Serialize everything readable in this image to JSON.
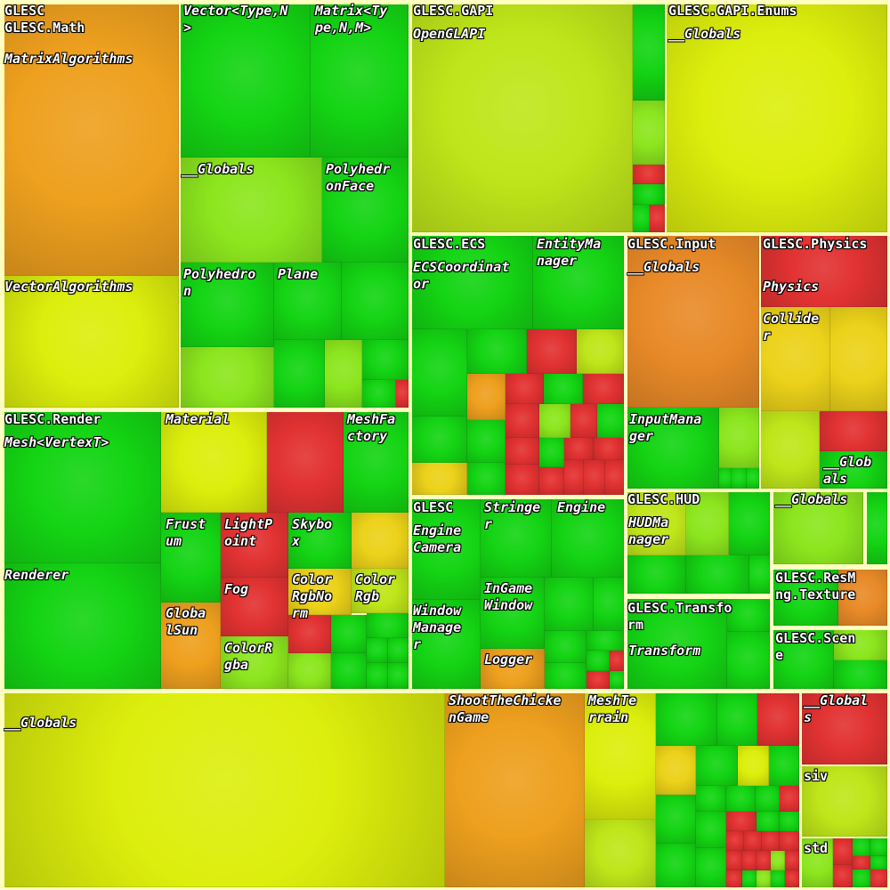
{
  "palette": {
    "green": "#14d414",
    "lgreen": "#8ce61e",
    "ygreen": "#bfe61a",
    "yellow": "#dcee0c",
    "yelloworange": "#ecd21a",
    "orange": "#eea01e",
    "orangered": "#e88a28",
    "red": "#e23232",
    "border": "#ffffc0"
  },
  "namespaces": {
    "glesc_math": [
      "GLESC",
      "GLESC.Math"
    ],
    "glesc_gapi": "GLESC.GAPI",
    "glesc_gapi_enums": "GLESC.GAPI.Enums",
    "glesc_ecs": "GLESC.ECS",
    "glesc_input": "GLESC.Input",
    "glesc_physics": "GLESC.Physics",
    "glesc_render": "GLESC.Render",
    "glesc_engine": "GLESC",
    "glesc_hud": "GLESC.HUD",
    "glesc_transform": [
      "GLESC.Transfo",
      "rm"
    ],
    "glesc_resmng": [
      "GLESC.ResM",
      "ng.Texture"
    ],
    "glesc_scene": [
      "GLESC.Scen",
      "e"
    ]
  },
  "classes": {
    "matrix_algorithms": "MatrixAlgorithms",
    "vector_algorithms": "VectorAlgorithms",
    "vector_type": [
      "Vector<Type,N",
      ">"
    ],
    "matrix_type": [
      "Matrix<Ty",
      "pe,N,M>"
    ],
    "math_globals": "__Globals",
    "polyhedron_face": [
      "Polyhedr",
      "onFace"
    ],
    "polyhedron": [
      "Polyhedro",
      "n"
    ],
    "plane": "Plane",
    "opengl_api": "OpenGLAPI",
    "gapi_enums_globals": "__Globals",
    "ecs_coordinator": [
      "ECSCoordinat",
      "or"
    ],
    "entity_manager": [
      "EntityMa",
      "nager"
    ],
    "input_globals": "__Globals",
    "input_manager": [
      "InputMana",
      "ger"
    ],
    "physics": "Physics",
    "collider": [
      "Collide",
      "r"
    ],
    "physics_globals": [
      "__Glob",
      "als"
    ],
    "mesh_vertex": "Mesh<VertexT>",
    "renderer": "Renderer",
    "material": "Material",
    "mesh_factory": [
      "MeshFa",
      "ctory"
    ],
    "frustum": [
      "Frust",
      "um"
    ],
    "light_point": [
      "LightP",
      "oint"
    ],
    "skybox": [
      "Skybo",
      "x"
    ],
    "fog": "Fog",
    "color_rgb_norm": [
      "Color",
      "RgbNo",
      "rm"
    ],
    "color_rgb": [
      "Color",
      "Rgb"
    ],
    "global_sun": [
      "Globa",
      "lSun"
    ],
    "color_rgba": [
      "ColorR",
      "gba"
    ],
    "engine": "Engine",
    "camera": "Camera",
    "window_manager": [
      "Window",
      "Manage",
      "r"
    ],
    "stringer": [
      "Stringe",
      "r"
    ],
    "engine_cls": "Engine",
    "ingame_window": [
      "InGame",
      "Window"
    ],
    "logger": "Logger",
    "hud_manager": [
      "HUDMa",
      "nager"
    ],
    "hud_globals": "__Globals",
    "transform": "Transform",
    "root_globals": "__Globals",
    "shoot_the_chicken": [
      "ShootTheChicke",
      "nGame"
    ],
    "mesh_terrain": [
      "MeshTe",
      "rrain"
    ],
    "misc_globals": [
      "__Global",
      "s"
    ],
    "siv": "siv",
    "std": "std"
  }
}
